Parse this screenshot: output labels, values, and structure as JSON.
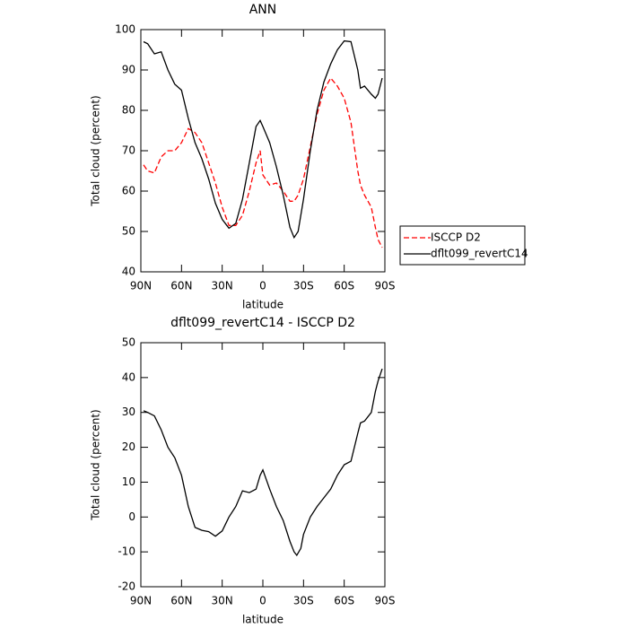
{
  "chart_data": [
    {
      "type": "line",
      "title": "ANN",
      "xlabel": "latitude",
      "ylabel": "Total cloud (percent)",
      "x": [
        88,
        85,
        80,
        75,
        70,
        65,
        60,
        55,
        50,
        45,
        40,
        35,
        30,
        25,
        20,
        15,
        10,
        5,
        2,
        0,
        -5,
        -10,
        -15,
        -20,
        -23,
        -26,
        -30,
        -35,
        -40,
        -45,
        -50,
        -55,
        -60,
        -65,
        -70,
        -72,
        -75,
        -80,
        -83,
        -85,
        -88
      ],
      "series": [
        {
          "name": "ISCCP D2",
          "color": "#ff0000",
          "dash": true,
          "values": [
            66.5,
            65,
            64.5,
            68.5,
            70,
            70,
            72,
            75.5,
            74.5,
            72,
            67,
            62,
            56,
            51.5,
            51.5,
            54,
            60,
            67,
            70,
            64,
            61.5,
            62,
            60,
            57.5,
            57.5,
            59,
            63,
            71,
            79,
            85,
            88,
            86,
            83,
            77,
            65,
            61.5,
            59,
            56,
            51,
            48,
            46
          ]
        },
        {
          "name": "dflt099_revertC14",
          "color": "#000000",
          "dash": false,
          "values": [
            97,
            96.5,
            94,
            94.5,
            90,
            86.5,
            85,
            78,
            72,
            68,
            63,
            57,
            53,
            50.8,
            52,
            58,
            67,
            76,
            77.5,
            76,
            72,
            66,
            59,
            51,
            48.5,
            50,
            58,
            70,
            80,
            87,
            91.5,
            95,
            97.2,
            97,
            90,
            85.5,
            86,
            84,
            83,
            84,
            88
          ]
        }
      ],
      "xlim": [
        90,
        -90
      ],
      "xticks": [
        {
          "value": 90,
          "label": "90N"
        },
        {
          "value": 60,
          "label": "60N"
        },
        {
          "value": 30,
          "label": "30N"
        },
        0,
        {
          "value": -30,
          "label": "30S"
        },
        {
          "value": -60,
          "label": "60S"
        },
        {
          "value": -90,
          "label": "90S"
        }
      ],
      "ylim": [
        40,
        100
      ],
      "yticks": [
        40,
        50,
        60,
        70,
        80,
        90,
        100
      ],
      "legend": "right"
    },
    {
      "type": "line",
      "title": "dflt099_revertC14 - ISCCP D2",
      "xlabel": "latitude",
      "ylabel": "Total cloud (percent)",
      "x": [
        88,
        85,
        80,
        75,
        70,
        65,
        60,
        55,
        50,
        45,
        40,
        35,
        30,
        25,
        20,
        15,
        10,
        5,
        2,
        0,
        -5,
        -10,
        -15,
        -20,
        -23,
        -25,
        -28,
        -30,
        -35,
        -40,
        -45,
        -50,
        -55,
        -60,
        -65,
        -70,
        -72,
        -75,
        -80,
        -83,
        -85,
        -88
      ],
      "series": [
        {
          "color": "#000000",
          "dash": false,
          "values": [
            30.5,
            30,
            29,
            25,
            20,
            17,
            12,
            3,
            -3,
            -3.8,
            -4.2,
            -5.5,
            -4,
            0,
            3,
            7.5,
            7,
            8,
            12,
            13.5,
            8,
            3,
            -1,
            -7,
            -10,
            -11,
            -9,
            -5,
            0,
            3,
            5.5,
            8,
            12,
            15,
            16,
            24,
            27,
            27.5,
            30,
            36,
            39,
            42.5
          ]
        }
      ],
      "xlim": [
        90,
        -90
      ],
      "xticks": [
        {
          "value": 90,
          "label": "90N"
        },
        {
          "value": 60,
          "label": "60N"
        },
        {
          "value": 30,
          "label": "30N"
        },
        0,
        {
          "value": -30,
          "label": "30S"
        },
        {
          "value": -60,
          "label": "60S"
        },
        {
          "value": -90,
          "label": "90S"
        }
      ],
      "ylim": [
        -20,
        50
      ],
      "yticks": [
        -20,
        -10,
        0,
        10,
        20,
        30,
        40,
        50
      ]
    }
  ]
}
